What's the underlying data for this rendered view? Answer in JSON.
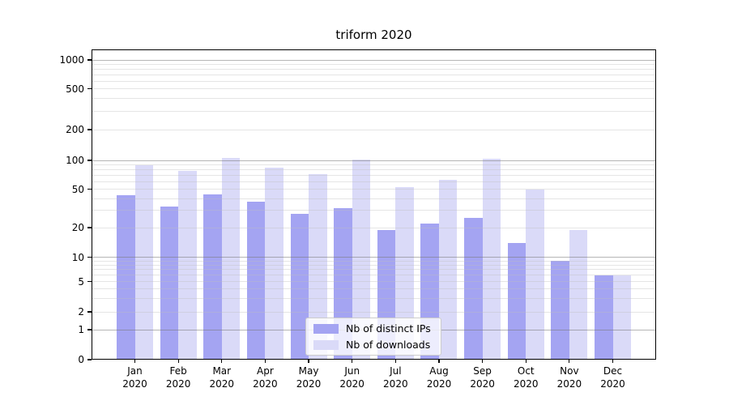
{
  "title": "triform 2020",
  "legend": {
    "items": [
      {
        "label": "Nb of distinct IPs",
        "color": "#a4a4f2"
      },
      {
        "label": "Nb of downloads",
        "color": "#dadaf8"
      }
    ]
  },
  "y_axis": {
    "tick_labels": [
      "0",
      "1",
      "2",
      "5",
      "10",
      "20",
      "50",
      "100",
      "200",
      "500",
      "1000"
    ]
  },
  "x_axis": {
    "tick_labels": [
      "Jan 2020",
      "Feb 2020",
      "Mar 2020",
      "Apr 2020",
      "May 2020",
      "Jun 2020",
      "Jul 2020",
      "Aug 2020",
      "Sep 2020",
      "Oct 2020",
      "Nov 2020",
      "Dec 2020"
    ]
  },
  "chart_data": {
    "type": "bar",
    "title": "triform 2020",
    "categories": [
      "Jan 2020",
      "Feb 2020",
      "Mar 2020",
      "Apr 2020",
      "May 2020",
      "Jun 2020",
      "Jul 2020",
      "Aug 2020",
      "Sep 2020",
      "Oct 2020",
      "Nov 2020",
      "Dec 2020"
    ],
    "series": [
      {
        "name": "Nb of distinct IPs",
        "color": "#a4a4f2",
        "values": [
          43,
          33,
          44,
          37,
          28,
          32,
          19,
          22,
          25,
          14,
          9,
          6
        ]
      },
      {
        "name": "Nb of downloads",
        "color": "#dadaf8",
        "values": [
          89,
          77,
          105,
          84,
          72,
          102,
          53,
          62,
          104,
          50,
          19,
          6
        ]
      }
    ],
    "xlabel": "",
    "ylabel": "",
    "yscale": "symlog",
    "y_ticks": [
      0,
      1,
      2,
      5,
      10,
      20,
      50,
      100,
      200,
      500,
      1000
    ],
    "ylim": [
      0,
      1400
    ],
    "grid": "on",
    "legend_position": "lower center"
  }
}
